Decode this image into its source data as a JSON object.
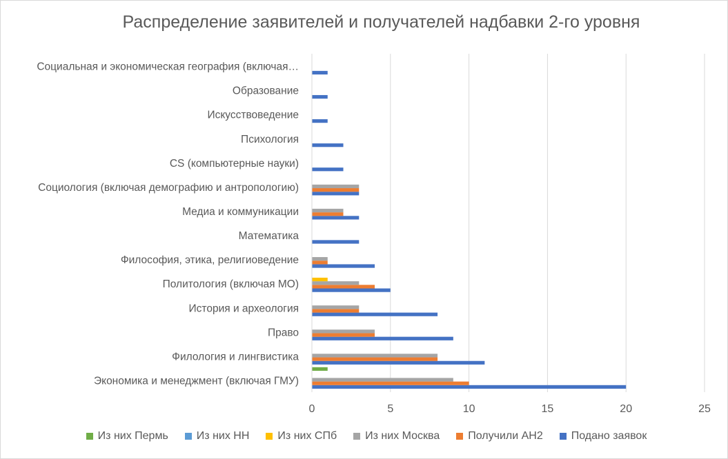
{
  "chart_data": {
    "type": "bar",
    "orientation": "horizontal",
    "title": "Распределение заявителей и получателей надбавки 2-го уровня",
    "xlabel": "",
    "ylabel": "",
    "xlim": [
      0,
      25
    ],
    "xticks": [
      0,
      5,
      10,
      15,
      20,
      25
    ],
    "grid": true,
    "legend_position": "bottom",
    "categories": [
      "Экономика и менеджмент (включая ГМУ)",
      "Филология и лингвистика",
      "Право",
      "История и археология",
      "Политология (включая МО)",
      "Философия, этика, религиоведение",
      "Математика",
      "Медиа и коммуникации",
      "Социология (включая демографию и антропологию)",
      "CS (компьютерные науки)",
      "Психология",
      "Искусствоведение",
      "Образование",
      "Социальная и экономическая география (включая…"
    ],
    "series": [
      {
        "name": "Подано заявок",
        "color": "#4472c4",
        "values": [
          20,
          11,
          9,
          8,
          5,
          4,
          3,
          3,
          3,
          2,
          2,
          1,
          1,
          1
        ]
      },
      {
        "name": "Получили АН2",
        "color": "#ed7d31",
        "values": [
          10,
          8,
          4,
          3,
          4,
          1,
          0,
          2,
          3,
          0,
          0,
          0,
          0,
          0
        ]
      },
      {
        "name": "Из них Москва",
        "color": "#a5a5a5",
        "values": [
          9,
          8,
          4,
          3,
          3,
          1,
          0,
          2,
          3,
          0,
          0,
          0,
          0,
          0
        ]
      },
      {
        "name": "Из них СПб",
        "color": "#ffc000",
        "values": [
          0,
          0,
          0,
          0,
          1,
          0,
          0,
          0,
          0,
          0,
          0,
          0,
          0,
          0
        ]
      },
      {
        "name": "Из них НН",
        "color": "#5b9bd5",
        "values": [
          0,
          0,
          0,
          0,
          0,
          0,
          0,
          0,
          0,
          0,
          0,
          0,
          0,
          0
        ]
      },
      {
        "name": "Из них Пермь",
        "color": "#70ad47",
        "values": [
          1,
          0,
          0,
          0,
          0,
          0,
          0,
          0,
          0,
          0,
          0,
          0,
          0,
          0
        ]
      }
    ],
    "legend_order": [
      "Из них Пермь",
      "Из них НН",
      "Из них СПб",
      "Из них Москва",
      "Получили АН2",
      "Подано заявок"
    ]
  }
}
